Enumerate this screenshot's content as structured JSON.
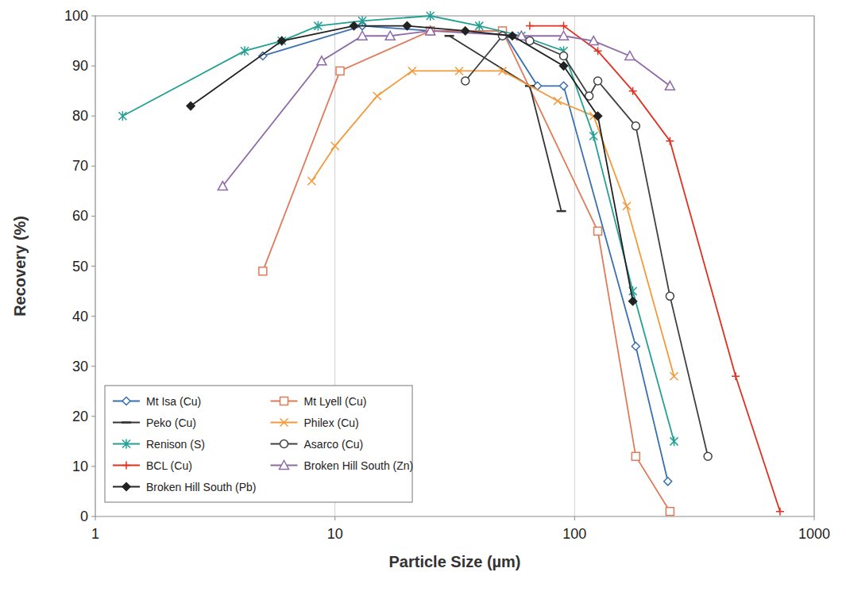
{
  "chart_data": {
    "type": "line",
    "x_label": "Particle Size (µm)",
    "y_label": "Recovery (%)",
    "log": "x",
    "grid": true,
    "legend": "lower left",
    "xlim": [
      1,
      1000
    ],
    "xticks": [
      1,
      10,
      100,
      1000
    ],
    "ylim": [
      0,
      100
    ],
    "yticks": [
      0,
      10,
      20,
      30,
      40,
      50,
      60,
      70,
      80,
      90,
      100
    ],
    "series": [
      {
        "name": "Mt Isa (Cu)",
        "color": "#3a6fb0",
        "marker": "diamond_open",
        "x": [
          5,
          13,
          25,
          50,
          70,
          90,
          180,
          245
        ],
        "values": [
          92,
          98,
          97,
          97,
          86,
          86,
          34,
          7
        ]
      },
      {
        "name": "Mt Lyell (Cu)",
        "color": "#e07b5a",
        "marker": "square",
        "x": [
          5,
          10.5,
          25,
          50,
          125,
          180,
          250
        ],
        "values": [
          49,
          89,
          97,
          97,
          57,
          12,
          1
        ]
      },
      {
        "name": "Peko (Cu)",
        "color": "#333333",
        "marker": "dash",
        "x": [
          30,
          65,
          88
        ],
        "values": [
          96,
          86,
          61
        ]
      },
      {
        "name": "Philex (Cu)",
        "color": "#f29a3c",
        "marker": "x",
        "x": [
          8,
          10,
          15,
          21,
          33,
          50,
          85,
          120,
          165,
          260
        ],
        "values": [
          67,
          74,
          84,
          89,
          89,
          89,
          83,
          80,
          62,
          28
        ]
      },
      {
        "name": "Renison (S)",
        "color": "#23a093",
        "marker": "star",
        "x": [
          1.3,
          4.2,
          6,
          8.5,
          13,
          25,
          40,
          60,
          90,
          120,
          175,
          260
        ],
        "values": [
          80,
          93,
          95,
          98,
          99,
          100,
          98,
          96,
          93,
          76,
          45,
          15
        ]
      },
      {
        "name": "Asarco (Cu)",
        "color": "#404040",
        "marker": "circle",
        "x": [
          35,
          50,
          65,
          90,
          115,
          125,
          180,
          250,
          360
        ],
        "values": [
          87,
          96,
          95,
          92,
          84,
          87,
          78,
          44,
          12
        ]
      },
      {
        "name": "BCL (Cu)",
        "color": "#e03020",
        "marker": "plus",
        "x": [
          65,
          90,
          125,
          175,
          250,
          470,
          720
        ],
        "values": [
          98,
          98,
          93,
          85,
          75,
          28,
          1
        ]
      },
      {
        "name": "Broken Hill South (Zn)",
        "color": "#8e6aa8",
        "marker": "triangle",
        "x": [
          3.4,
          8.8,
          13,
          17,
          25,
          60,
          90,
          120,
          170,
          250
        ],
        "values": [
          66,
          91,
          96,
          96,
          97,
          96,
          96,
          95,
          92,
          86
        ]
      },
      {
        "name": "Broken Hill South (Pb)",
        "color": "#222222",
        "marker": "diamond",
        "x": [
          2.5,
          6,
          12,
          20,
          35,
          55,
          90,
          125,
          175
        ],
        "values": [
          82,
          95,
          98,
          98,
          97,
          96,
          90,
          80,
          43
        ]
      }
    ]
  }
}
